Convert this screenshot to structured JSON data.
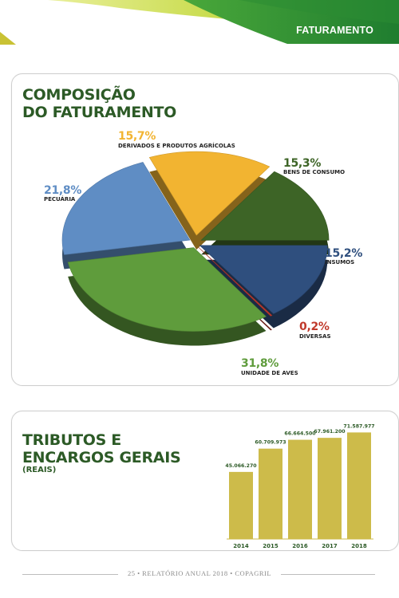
{
  "header": {
    "section_title": "FATURAMENTO"
  },
  "composition": {
    "title_line1": "COMPOSIÇÃO",
    "title_line2": "DO FATURAMENTO",
    "slices": [
      {
        "pct": "15,7%",
        "label": "DERIVADOS E PRODUTOS AGRÍCOLAS",
        "value": 15.7,
        "color": "#f2b431"
      },
      {
        "pct": "15,3%",
        "label": "BENS DE CONSUMO",
        "value": 15.3,
        "color": "#3d6426"
      },
      {
        "pct": "15,2%",
        "label": "INSUMOS",
        "value": 15.2,
        "color": "#2f4f7e"
      },
      {
        "pct": "0,2%",
        "label": "DIVERSAS",
        "value": 0.2,
        "color": "#c0392b"
      },
      {
        "pct": "31,8%",
        "label": "UNIDADE DE AVES",
        "value": 31.8,
        "color": "#5f9c3c"
      },
      {
        "pct": "21,8%",
        "label": "PECUÁRIA",
        "value": 21.8,
        "color": "#5f8dc4"
      }
    ]
  },
  "taxes": {
    "title_line1": "TRIBUTOS E",
    "title_line2": "ENCARGOS GERAIS",
    "subtitle": "(REAIS)"
  },
  "chart_data": {
    "type": "bar",
    "categories": [
      "2014",
      "2015",
      "2016",
      "2017",
      "2018"
    ],
    "values": [
      45066270,
      60709973,
      66664500,
      67961200,
      71587977
    ],
    "value_labels": [
      "45.066.270",
      "60.709.973",
      "66.664.500",
      "67.961.200",
      "71.587.977"
    ],
    "color": "#cdbb4a",
    "ylim": [
      0,
      75000000
    ]
  },
  "footer": {
    "text": "25 • RELATÓRIO ANUAL 2018 • COPAGRIL"
  }
}
